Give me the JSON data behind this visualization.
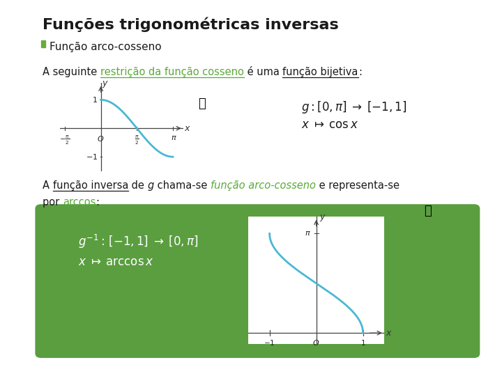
{
  "title": "Funções trigonométricas inversas",
  "subtitle": "Função arco-cosseno",
  "bullet_color": "#6aaa3a",
  "green_color": "#5a9e40",
  "teal_color": "#4ab8d4",
  "text_color": "#1a1a1a",
  "bg_color": "#ffffff",
  "green_text": "#5aaa3a",
  "formula1_l1": "$g: [0, \\pi] \\;\\rightarrow\\; [-1, 1]$",
  "formula1_l2": "$x \\;\\mapsto\\; \\cos x$",
  "formula2_l1": "$g^{-1}{:}\\,[-1, 1] \\;\\rightarrow\\; [0, \\pi]$",
  "formula2_l2": "$x \\;\\mapsto\\; \\arccos x$"
}
